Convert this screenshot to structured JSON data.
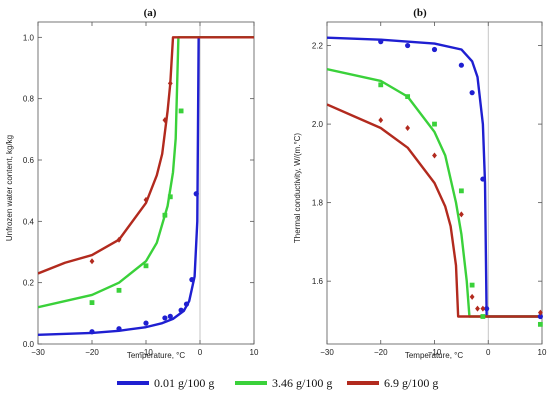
{
  "chart_data": [
    {
      "type": "line",
      "panel_label": "(a)",
      "xlabel": "Temperature, °C",
      "ylabel": "Unfrozen water content, kg/kg",
      "xlim": [
        -30,
        10
      ],
      "ylim": [
        0,
        1.05
      ],
      "xticks": [
        -30,
        -20,
        -10,
        0,
        10
      ],
      "xtick_labels": [
        "−30",
        "−20",
        "−10",
        "0",
        "10"
      ],
      "yticks": [
        0,
        0.2,
        0.4,
        0.6,
        0.8,
        1.0
      ],
      "ytick_labels": [
        "0.0",
        "0.2",
        "0.4",
        "0.6",
        "0.8",
        "1.0"
      ],
      "vline_x": 0,
      "series": [
        {
          "name": "0.01 g/100 g",
          "color": "#1f1fd1",
          "marker": "circle",
          "line": [
            [
              -30,
              0.03
            ],
            [
              -20,
              0.036
            ],
            [
              -15,
              0.043
            ],
            [
              -10,
              0.055
            ],
            [
              -7,
              0.068
            ],
            [
              -5,
              0.082
            ],
            [
              -3,
              0.108
            ],
            [
              -2,
              0.14
            ],
            [
              -1,
              0.22
            ],
            [
              -0.5,
              0.4
            ],
            [
              -0.25,
              1.0
            ],
            [
              10,
              1.0
            ]
          ],
          "points": [
            [
              -20,
              0.04
            ],
            [
              -15,
              0.05
            ],
            [
              -10,
              0.068
            ],
            [
              -6.5,
              0.085
            ],
            [
              -5.5,
              0.09
            ],
            [
              -3.5,
              0.11
            ],
            [
              -2.5,
              0.13
            ],
            [
              -1.5,
              0.21
            ],
            [
              -0.7,
              0.49
            ]
          ]
        },
        {
          "name": "3.46 g/100 g",
          "color": "#3ad13a",
          "marker": "square",
          "line": [
            [
              -30,
              0.12
            ],
            [
              -20,
              0.16
            ],
            [
              -15,
              0.2
            ],
            [
              -10,
              0.27
            ],
            [
              -8,
              0.33
            ],
            [
              -6,
              0.45
            ],
            [
              -5,
              0.56
            ],
            [
              -4.5,
              0.67
            ],
            [
              -4,
              1.0
            ],
            [
              10,
              1.0
            ]
          ],
          "points": [
            [
              -20,
              0.135
            ],
            [
              -15,
              0.175
            ],
            [
              -10,
              0.255
            ],
            [
              -6.5,
              0.42
            ],
            [
              -5.5,
              0.48
            ],
            [
              -3.5,
              0.76
            ]
          ]
        },
        {
          "name": "6.9 g/100 g",
          "color": "#b22a1e",
          "marker": "diamond",
          "line": [
            [
              -30,
              0.23
            ],
            [
              -25,
              0.265
            ],
            [
              -20,
              0.29
            ],
            [
              -15,
              0.34
            ],
            [
              -10,
              0.46
            ],
            [
              -8,
              0.55
            ],
            [
              -7,
              0.62
            ],
            [
              -6,
              0.76
            ],
            [
              -5.5,
              0.85
            ],
            [
              -5,
              1.0
            ],
            [
              10,
              1.0
            ]
          ],
          "points": [
            [
              -20,
              0.27
            ],
            [
              -15,
              0.34
            ],
            [
              -10,
              0.47
            ],
            [
              -6.5,
              0.73
            ],
            [
              -5.5,
              0.85
            ]
          ]
        }
      ]
    },
    {
      "type": "line",
      "panel_label": "(b)",
      "xlabel": "Temperature, °C",
      "ylabel": "Thermal conductivity, W/(m.°C)",
      "xlim": [
        -30,
        10
      ],
      "ylim": [
        1.44,
        2.26
      ],
      "xticks": [
        -30,
        -20,
        -10,
        0,
        10
      ],
      "xtick_labels": [
        "−30",
        "−20",
        "−10",
        "0",
        "10"
      ],
      "yticks": [
        1.6,
        1.8,
        2.0,
        2.2
      ],
      "ytick_labels": [
        "1.6",
        "1.8",
        "2.0",
        "2.2"
      ],
      "vline_x": 0,
      "series": [
        {
          "name": "0.01 g/100 g",
          "color": "#1f1fd1",
          "marker": "circle",
          "line": [
            [
              -30,
              2.22
            ],
            [
              -20,
              2.215
            ],
            [
              -10,
              2.205
            ],
            [
              -5,
              2.19
            ],
            [
              -3,
              2.16
            ],
            [
              -2,
              2.12
            ],
            [
              -1,
              2.0
            ],
            [
              -0.6,
              1.85
            ],
            [
              -0.3,
              1.51
            ],
            [
              10,
              1.51
            ]
          ],
          "points": [
            [
              -20,
              2.21
            ],
            [
              -15,
              2.2
            ],
            [
              -10,
              2.19
            ],
            [
              -5,
              2.15
            ],
            [
              -3,
              2.08
            ],
            [
              -1,
              1.86
            ],
            [
              -0.3,
              1.53
            ],
            [
              9.7,
              1.51
            ]
          ]
        },
        {
          "name": "3.46 g/100 g",
          "color": "#3ad13a",
          "marker": "square",
          "line": [
            [
              -30,
              2.14
            ],
            [
              -20,
              2.11
            ],
            [
              -15,
              2.07
            ],
            [
              -10,
              1.98
            ],
            [
              -8,
              1.92
            ],
            [
              -6,
              1.8
            ],
            [
              -5,
              1.72
            ],
            [
              -4,
              1.6
            ],
            [
              -3.5,
              1.51
            ],
            [
              10,
              1.51
            ]
          ],
          "points": [
            [
              -20,
              2.1
            ],
            [
              -15,
              2.07
            ],
            [
              -10,
              2.0
            ],
            [
              -5,
              1.83
            ],
            [
              -3,
              1.59
            ],
            [
              -1,
              1.51
            ],
            [
              9.7,
              1.49
            ]
          ]
        },
        {
          "name": "6.9 g/100 g",
          "color": "#b22a1e",
          "marker": "diamond",
          "line": [
            [
              -30,
              2.05
            ],
            [
              -25,
              2.02
            ],
            [
              -20,
              1.99
            ],
            [
              -15,
              1.94
            ],
            [
              -10,
              1.85
            ],
            [
              -8,
              1.79
            ],
            [
              -7,
              1.74
            ],
            [
              -6,
              1.64
            ],
            [
              -5.6,
              1.51
            ],
            [
              10,
              1.51
            ]
          ],
          "points": [
            [
              -20,
              2.01
            ],
            [
              -15,
              1.99
            ],
            [
              -10,
              1.92
            ],
            [
              -5,
              1.77
            ],
            [
              -3,
              1.56
            ],
            [
              -2,
              1.53
            ],
            [
              -1,
              1.53
            ],
            [
              9.7,
              1.52
            ]
          ]
        }
      ]
    }
  ],
  "legend": [
    {
      "label": "0.01 g/100 g",
      "color": "#1f1fd1"
    },
    {
      "label": "3.46 g/100 g",
      "color": "#3ad13a"
    },
    {
      "label": "6.9 g/100 g",
      "color": "#b22a1e"
    }
  ]
}
